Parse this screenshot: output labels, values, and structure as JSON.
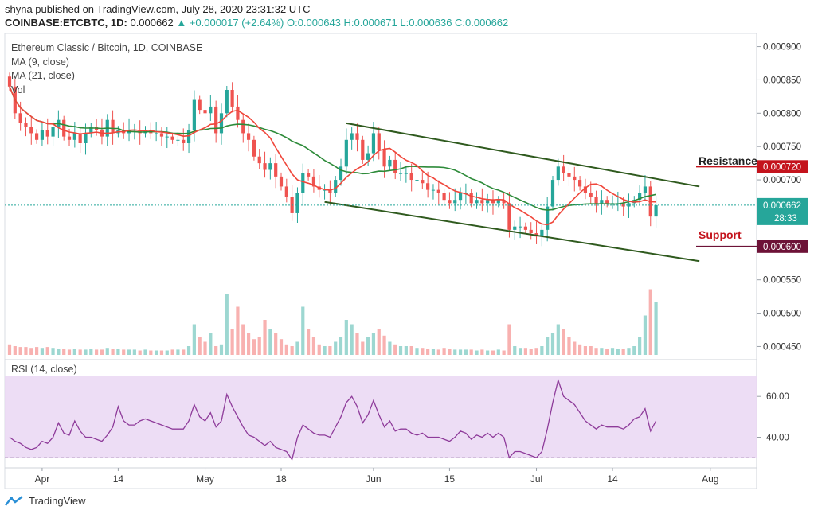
{
  "header": {
    "line1": "shyna published on TradingView.com, July 28, 2020 23:31:32 UTC",
    "symbol": "COINBASE:ETCBTC, 1D",
    "price": "0.000662",
    "change": "▲ +0.000017 (+2.64%)",
    "ohlc": "O:0.000643 H:0.000671 L:0.000636 C:0.000662"
  },
  "legend": {
    "title": "Ethereum Classic / Bitcoin, 1D, COINBASE",
    "ma9": "MA (9, close)",
    "ma21": "MA (21, close)",
    "vol": "Vol"
  },
  "annotations": {
    "resistance": "Resistance",
    "support": "Support",
    "resistance_value": "0.000720",
    "support_value": "0.000600",
    "last_price": "0.000662",
    "countdown": "28:33"
  },
  "rsi": {
    "label": "RSI (14, close)"
  },
  "footer": {
    "brand": "TradingView"
  },
  "colors": {
    "up": "#26a69a",
    "down": "#ef5350",
    "ma9": "#f0463a",
    "ma21": "#2e8b3a",
    "channel": "#2f5a1e",
    "rsi": "#8e3b9a",
    "rsi_bg": "#ead7f3",
    "resistance": "#c4131c",
    "support": "#6d1237"
  },
  "chart_data": {
    "type": "candlestick",
    "title": "Ethereum Classic / Bitcoin, 1D, COINBASE",
    "x_ticks": [
      "Apr",
      "14",
      "May",
      "18",
      "Jun",
      "15",
      "Jul",
      "14",
      "Aug"
    ],
    "x_tick_days": [
      6,
      20,
      36,
      50,
      67,
      81,
      97,
      111,
      129
    ],
    "first_day": "2020-03-26",
    "price_axis": {
      "ticks": [
        "0.000900",
        "0.000850",
        "0.000800",
        "0.000750",
        "0.000700",
        "0.000650",
        "0.000600",
        "0.000550",
        "0.000500",
        "0.000450"
      ],
      "ylim": [
        0.000435,
        0.000915
      ]
    },
    "rsi_axis": {
      "ticks": [
        "60.00",
        "40.00"
      ],
      "ylim": [
        25,
        78
      ],
      "bands": [
        30,
        70
      ]
    },
    "close": [
      0.00084,
      0.0008,
      0.000785,
      0.00078,
      0.00077,
      0.00076,
      0.000775,
      0.000765,
      0.00078,
      0.00079,
      0.000765,
      0.00076,
      0.00077,
      0.000755,
      0.00077,
      0.00078,
      0.000775,
      0.000765,
      0.00079,
      0.00077,
      0.000775,
      0.00077,
      0.000775,
      0.000775,
      0.00077,
      0.000775,
      0.00077,
      0.00077,
      0.000765,
      0.000765,
      0.00076,
      0.00076,
      0.000755,
      0.000775,
      0.00082,
      0.000805,
      0.0008,
      0.00081,
      0.00077,
      0.0008,
      0.000835,
      0.00081,
      0.00079,
      0.00077,
      0.00076,
      0.000735,
      0.000725,
      0.000715,
      0.000725,
      0.000705,
      0.00069,
      0.000675,
      0.00065,
      0.00068,
      0.00071,
      0.000705,
      0.00069,
      0.000685,
      0.000685,
      0.00068,
      0.0007,
      0.00072,
      0.00076,
      0.00077,
      0.00076,
      0.00073,
      0.00074,
      0.00077,
      0.000745,
      0.00072,
      0.00073,
      0.00071,
      0.00071,
      0.00071,
      0.0007,
      0.0007,
      0.000695,
      0.000685,
      0.000685,
      0.00068,
      0.00067,
      0.000665,
      0.00067,
      0.00068,
      0.00068,
      0.000665,
      0.00067,
      0.000665,
      0.00067,
      0.000665,
      0.00067,
      0.000665,
      0.000625,
      0.00063,
      0.00063,
      0.000625,
      0.00062,
      0.000615,
      0.000625,
      0.00066,
      0.0007,
      0.00072,
      0.00071,
      0.000705,
      0.0007,
      0.00069,
      0.00068,
      0.000675,
      0.000665,
      0.00067,
      0.000665,
      0.000665,
      0.000665,
      0.00066,
      0.000665,
      0.00067,
      0.00068,
      0.00069,
      0.000645,
      0.000662
    ],
    "volume_rel": [
      0.12,
      0.1,
      0.09,
      0.09,
      0.08,
      0.09,
      0.08,
      0.09,
      0.08,
      0.07,
      0.07,
      0.06,
      0.07,
      0.06,
      0.06,
      0.07,
      0.06,
      0.06,
      0.08,
      0.07,
      0.07,
      0.06,
      0.06,
      0.06,
      0.05,
      0.06,
      0.05,
      0.05,
      0.05,
      0.05,
      0.06,
      0.06,
      0.06,
      0.1,
      0.35,
      0.2,
      0.15,
      0.25,
      0.1,
      0.12,
      0.7,
      0.3,
      0.55,
      0.35,
      0.25,
      0.18,
      0.2,
      0.4,
      0.3,
      0.25,
      0.18,
      0.12,
      0.1,
      0.15,
      0.55,
      0.3,
      0.2,
      0.12,
      0.1,
      0.1,
      0.15,
      0.2,
      0.4,
      0.35,
      0.25,
      0.15,
      0.2,
      0.25,
      0.3,
      0.22,
      0.15,
      0.12,
      0.1,
      0.1,
      0.1,
      0.08,
      0.08,
      0.07,
      0.07,
      0.06,
      0.08,
      0.07,
      0.06,
      0.06,
      0.06,
      0.06,
      0.05,
      0.06,
      0.05,
      0.05,
      0.06,
      0.05,
      0.35,
      0.1,
      0.08,
      0.08,
      0.07,
      0.08,
      0.1,
      0.2,
      0.25,
      0.35,
      0.3,
      0.2,
      0.15,
      0.12,
      0.1,
      0.1,
      0.08,
      0.08,
      0.07,
      0.08,
      0.07,
      0.07,
      0.08,
      0.1,
      0.2,
      0.45,
      0.75,
      0.6
    ],
    "rsi": [
      40,
      38,
      37,
      35,
      34,
      35,
      38,
      37,
      40,
      47,
      42,
      41,
      48,
      43,
      40,
      40,
      39,
      38,
      41,
      45,
      55,
      48,
      46,
      46,
      48,
      49,
      48,
      47,
      46,
      45,
      44,
      44,
      44,
      48,
      56,
      50,
      48,
      52,
      45,
      48,
      61,
      55,
      50,
      45,
      41,
      40,
      38,
      36,
      38,
      35,
      34,
      33,
      29,
      40,
      46,
      44,
      42,
      41,
      41,
      40,
      45,
      50,
      57,
      60,
      55,
      47,
      51,
      58,
      51,
      45,
      48,
      43,
      44,
      44,
      42,
      41,
      42,
      40,
      40,
      40,
      39,
      38,
      40,
      43,
      42,
      39,
      41,
      40,
      42,
      40,
      42,
      40,
      30,
      33,
      33,
      32,
      31,
      30,
      33,
      44,
      57,
      68,
      60,
      58,
      56,
      52,
      48,
      46,
      44,
      46,
      45,
      45,
      45,
      44,
      46,
      49,
      50,
      54,
      43,
      48
    ]
  }
}
